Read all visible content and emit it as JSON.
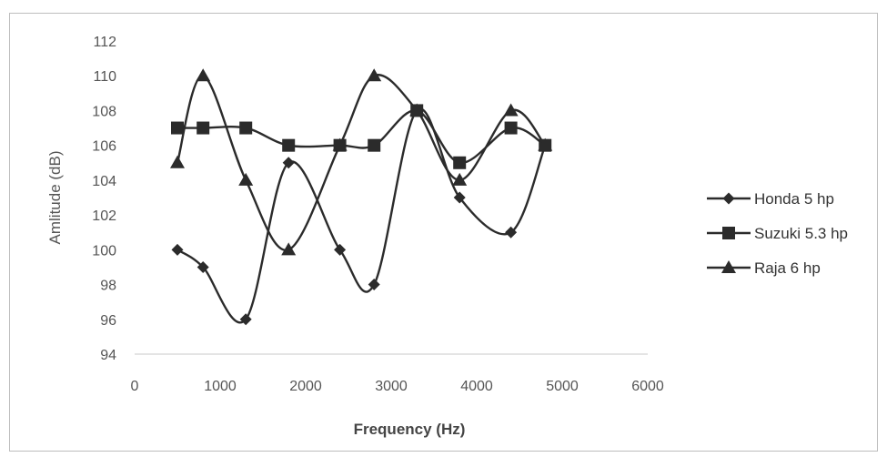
{
  "chart_data": {
    "type": "scatter",
    "title": "",
    "xlabel": "Frequency (Hz)",
    "ylabel": "Amlitude (dB)",
    "xlim": [
      0,
      6000
    ],
    "ylim": [
      94,
      112
    ],
    "xticks": [
      0,
      1000,
      2000,
      3000,
      4000,
      5000,
      6000
    ],
    "yticks": [
      94,
      96,
      98,
      100,
      102,
      104,
      106,
      108,
      110,
      112
    ],
    "grid": false,
    "smoothed_lines": true,
    "legend_position": "right",
    "series": [
      {
        "name": "Honda 5 hp",
        "marker": "diamond",
        "x": [
          500,
          800,
          1300,
          1800,
          2400,
          2800,
          3300,
          3800,
          4400,
          4800
        ],
        "y": [
          100,
          99,
          96,
          105,
          100,
          98,
          108,
          103,
          101,
          106
        ]
      },
      {
        "name": "Suzuki 5.3 hp",
        "marker": "square",
        "x": [
          500,
          800,
          1300,
          1800,
          2400,
          2800,
          3300,
          3800,
          4400,
          4800
        ],
        "y": [
          107,
          107,
          107,
          106,
          106,
          106,
          108,
          105,
          107,
          106
        ]
      },
      {
        "name": "Raja 6 hp",
        "marker": "triangle",
        "x": [
          500,
          800,
          1300,
          1800,
          2400,
          2800,
          3300,
          3800,
          4400,
          4800
        ],
        "y": [
          105,
          110,
          104,
          100,
          106,
          110,
          108,
          104,
          108,
          106
        ]
      }
    ],
    "colors": {
      "line": "#2b2b2b",
      "axis": "#c8c8c8",
      "text": "#555555"
    }
  }
}
